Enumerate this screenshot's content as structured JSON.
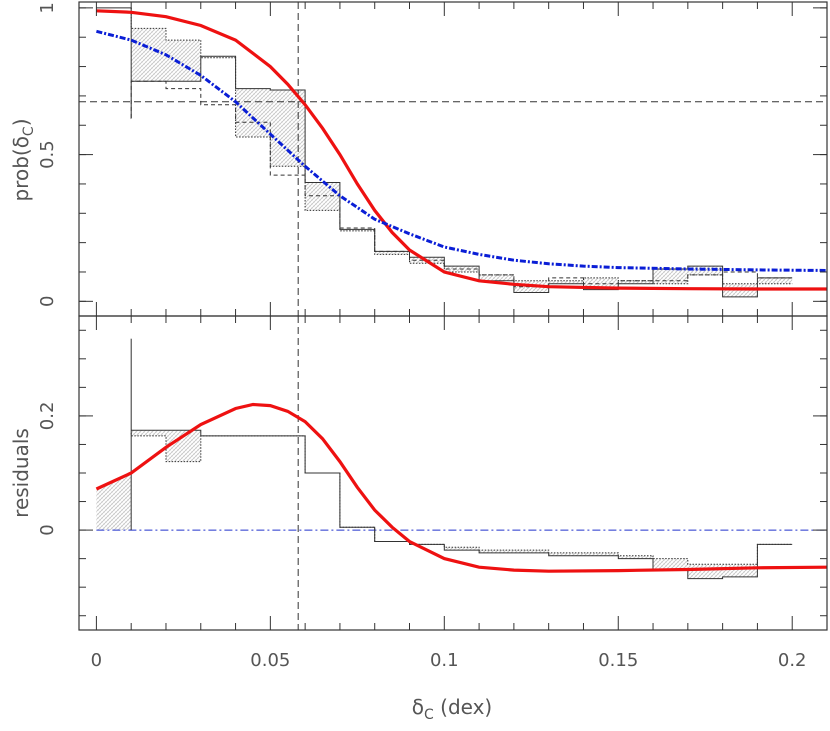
{
  "chart_data": [
    {
      "type": "line",
      "panel": "top",
      "ylabel_main": "prob(δ",
      "ylabel_sub": "C",
      "ylabel_close": ")",
      "xlim": [
        -0.005,
        0.21
      ],
      "ylim": [
        -0.05,
        1.02
      ],
      "yticks": [
        0,
        0.5,
        1
      ],
      "yticklabels": [
        "0",
        "0.5",
        "1"
      ],
      "hline": 0.68,
      "vline": 0.058,
      "colors": {
        "model_red": "#ee1111",
        "model_blue": "#0a1ed6",
        "hist": "#333333",
        "fill": "#d9d9d9"
      },
      "hist_edges": [
        0.01,
        0.02,
        0.03,
        0.04,
        0.05,
        0.06,
        0.07,
        0.08,
        0.09,
        0.1,
        0.11,
        0.12,
        0.13,
        0.14,
        0.15,
        0.16,
        0.17,
        0.18,
        0.19,
        0.2,
        0.21
      ],
      "series": [
        {
          "style": "histogram-solid",
          "values": [
            0.625,
            0.75,
            0.75,
            0.835,
            0.725,
            0.72,
            0.405,
            0.245,
            0.17,
            0.15,
            0.12,
            0.07,
            0.03,
            0.06,
            0.04,
            0.06,
            0.11,
            0.12,
            0.015,
            0.08
          ]
        },
        {
          "style": "histogram-dashed",
          "values": [
            0.625,
            0.75,
            0.725,
            0.67,
            0.61,
            0.43,
            0.36,
            0.25,
            0.17,
            0.14,
            0.11,
            0.09,
            0.05,
            0.08,
            0.06,
            0.07,
            0.07,
            0.09,
            0.1,
            0.08
          ]
        },
        {
          "style": "histogram-dotted",
          "values": [
            1.0,
            0.93,
            0.89,
            0.83,
            0.56,
            0.46,
            0.31,
            0.24,
            0.16,
            0.13,
            0.1,
            0.09,
            0.07,
            0.07,
            0.08,
            0.07,
            0.06,
            0.09,
            0.06,
            0.06
          ]
        },
        {
          "style": "model-red-solid",
          "x": [
            0,
            0.01,
            0.02,
            0.03,
            0.04,
            0.05,
            0.055,
            0.06,
            0.065,
            0.07,
            0.075,
            0.08,
            0.085,
            0.09,
            0.1,
            0.11,
            0.12,
            0.13,
            0.15,
            0.17,
            0.19,
            0.21
          ],
          "y": [
            0.99,
            0.985,
            0.97,
            0.94,
            0.89,
            0.8,
            0.74,
            0.67,
            0.59,
            0.5,
            0.4,
            0.31,
            0.235,
            0.175,
            0.1,
            0.07,
            0.058,
            0.05,
            0.045,
            0.043,
            0.042,
            0.042
          ]
        },
        {
          "style": "model-blue-dotdash",
          "x": [
            0,
            0.01,
            0.02,
            0.03,
            0.04,
            0.05,
            0.06,
            0.07,
            0.08,
            0.09,
            0.1,
            0.11,
            0.12,
            0.13,
            0.14,
            0.15,
            0.17,
            0.19,
            0.21
          ],
          "y": [
            0.92,
            0.89,
            0.84,
            0.77,
            0.68,
            0.57,
            0.46,
            0.36,
            0.28,
            0.23,
            0.185,
            0.16,
            0.14,
            0.128,
            0.12,
            0.115,
            0.11,
            0.107,
            0.105
          ]
        }
      ]
    },
    {
      "type": "line",
      "panel": "bottom",
      "ylabel": "residuals",
      "xlabel_main": "δ",
      "xlabel_sub": "C",
      "xlabel_rest": " (dex)",
      "xlim": [
        -0.005,
        0.21
      ],
      "ylim": [
        -0.175,
        0.375
      ],
      "xticks": [
        0,
        0.05,
        0.1,
        0.15,
        0.2
      ],
      "xticklabels": [
        "0",
        "0.05",
        "0.1",
        "0.15",
        "0.2"
      ],
      "yticks": [
        0,
        0.2
      ],
      "yticklabels": [
        "0",
        "0.2"
      ],
      "zero_line": 0,
      "vline": 0.058,
      "series": [
        {
          "style": "histogram-solid",
          "values": [
            0.335,
            0.175,
            0.175,
            0.165,
            0.165,
            0.165,
            0.1,
            0.005,
            -0.02,
            -0.025,
            -0.035,
            -0.04,
            -0.04,
            -0.045,
            -0.045,
            -0.05,
            -0.07,
            -0.085,
            -0.082,
            -0.025
          ]
        },
        {
          "style": "histogram-dotted",
          "values": [
            0.17,
            0.165,
            0.12,
            0.165,
            0.165,
            0.165,
            0.1,
            0.005,
            -0.02,
            -0.025,
            -0.03,
            -0.035,
            -0.035,
            -0.04,
            -0.04,
            -0.045,
            -0.05,
            -0.06,
            -0.06,
            -0.025
          ]
        },
        {
          "style": "model-red-solid",
          "x": [
            0,
            0.01,
            0.02,
            0.03,
            0.04,
            0.045,
            0.05,
            0.055,
            0.06,
            0.065,
            0.07,
            0.075,
            0.08,
            0.085,
            0.09,
            0.1,
            0.11,
            0.12,
            0.13,
            0.15,
            0.17,
            0.19,
            0.21
          ],
          "y": [
            0.072,
            0.1,
            0.145,
            0.185,
            0.213,
            0.22,
            0.218,
            0.208,
            0.19,
            0.16,
            0.12,
            0.075,
            0.035,
            0.005,
            -0.02,
            -0.05,
            -0.065,
            -0.07,
            -0.072,
            -0.071,
            -0.069,
            -0.066,
            -0.065
          ]
        }
      ]
    }
  ]
}
